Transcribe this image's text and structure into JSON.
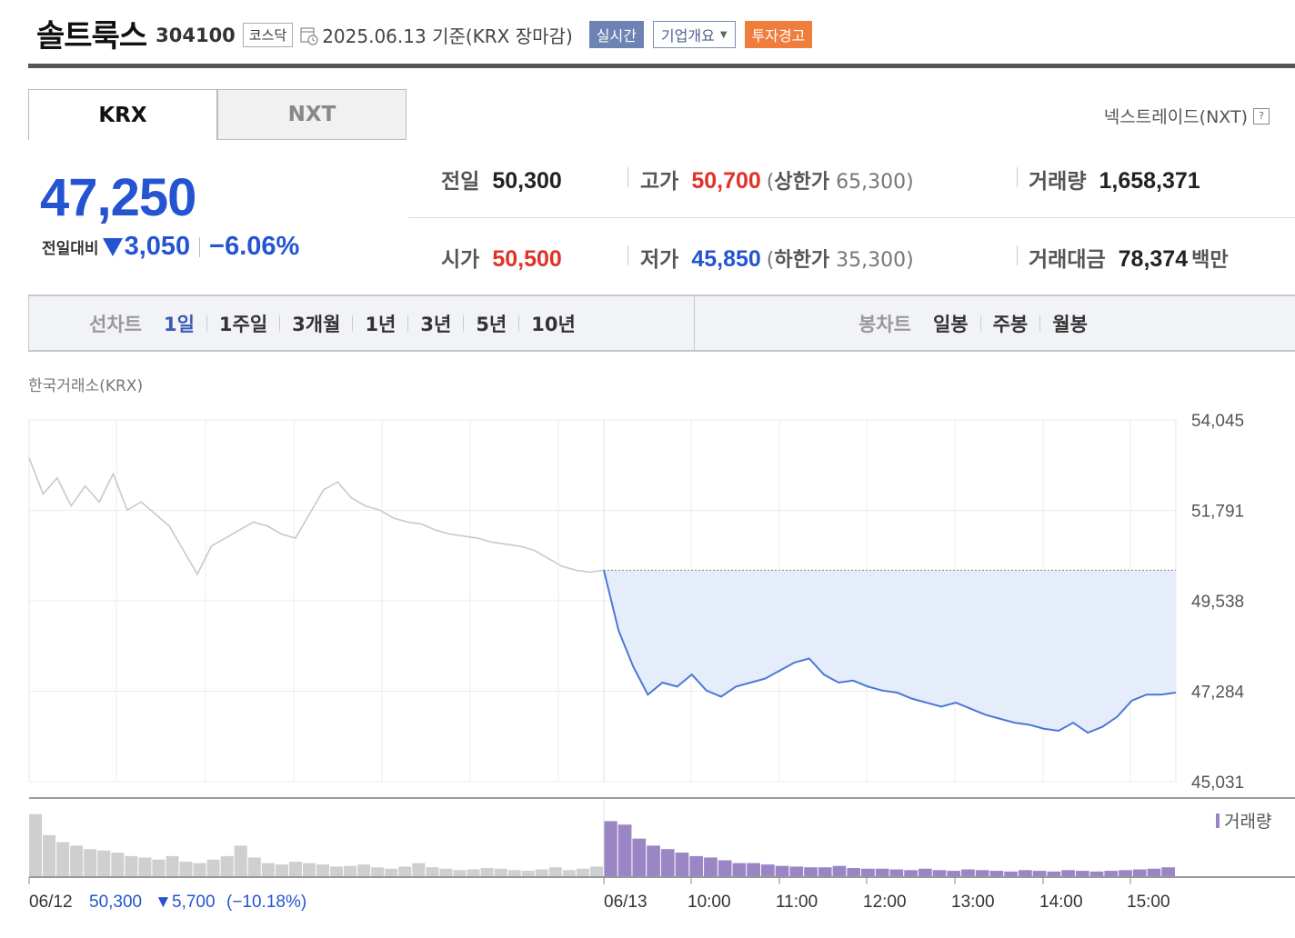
{
  "header": {
    "name": "솔트룩스",
    "code": "304100",
    "market": "코스닥",
    "date": "2025.06.13  기준(KRX 장마감)",
    "btn_realtime": "실시간",
    "btn_company": "기업개요",
    "btn_warning": "투자경고"
  },
  "tabs": {
    "krx": "KRX",
    "nxt": "NXT"
  },
  "nxt_link": "넥스트레이드(NXT)",
  "price": {
    "current": "47,250",
    "change_label": "전일대비",
    "change": "3,050",
    "change_pct": "−6.06%"
  },
  "stats": {
    "prev_label": "전일",
    "prev": "50,300",
    "high_label": "고가",
    "high": "50,700",
    "upper_label": "상한가",
    "upper": "65,300",
    "volume_label": "거래량",
    "volume": "1,658,371",
    "open_label": "시가",
    "open": "50,500",
    "low_label": "저가",
    "low": "45,850",
    "lower_label": "하한가",
    "lower": "35,300",
    "amount_label": "거래대금",
    "amount": "78,374",
    "amount_unit": "백만"
  },
  "chart_tabs": {
    "line_title": "선차트",
    "line": [
      "1일",
      "1주일",
      "3개월",
      "1년",
      "3년",
      "5년",
      "10년"
    ],
    "candle_title": "봉차트",
    "candle": [
      "일봉",
      "주봉",
      "월봉"
    ]
  },
  "exchange_label": "한국거래소(KRX)",
  "colors": {
    "up": "#e03226",
    "down": "#2454d1",
    "line_today": "#4a78d6",
    "fill_today": "#e5edfa",
    "volume": "#9a86c4"
  },
  "chart_data": {
    "type": "line",
    "y_ticks": [
      54045,
      51791,
      49538,
      47284,
      45031
    ],
    "ylim": [
      45031,
      54045
    ],
    "prev_close": 50300,
    "volume_legend": "거래량",
    "prev_day": {
      "date": "06/12",
      "close": "50,300",
      "change": "5,700",
      "change_pct": "(−10.18%)",
      "series": [
        53100,
        52200,
        52600,
        51900,
        52400,
        52000,
        52700,
        51800,
        52000,
        51700,
        51400,
        50800,
        50200,
        50900,
        51100,
        51300,
        51500,
        51400,
        51200,
        51100,
        51700,
        52300,
        52500,
        52100,
        51900,
        51800,
        51600,
        51500,
        51450,
        51300,
        51200,
        51150,
        51100,
        51000,
        50950,
        50900,
        50800,
        50600,
        50400,
        50300,
        50250,
        50300
      ]
    },
    "today": {
      "date": "06/13",
      "times": [
        "10:00",
        "11:00",
        "12:00",
        "13:00",
        "14:00",
        "15:00"
      ],
      "series": [
        50300,
        48800,
        47900,
        47200,
        47500,
        47400,
        47700,
        47300,
        47150,
        47400,
        47500,
        47600,
        47800,
        48000,
        48100,
        47700,
        47500,
        47550,
        47400,
        47300,
        47250,
        47100,
        47000,
        46900,
        47000,
        46850,
        46700,
        46600,
        46500,
        46450,
        46350,
        46300,
        46500,
        46250,
        46400,
        46650,
        47050,
        47200,
        47200,
        47250
      ]
    },
    "volume_prev": [
      90,
      60,
      50,
      45,
      40,
      38,
      35,
      30,
      28,
      25,
      30,
      22,
      20,
      25,
      30,
      45,
      28,
      20,
      18,
      22,
      20,
      18,
      15,
      16,
      18,
      14,
      12,
      15,
      20,
      14,
      12,
      10,
      11,
      13,
      12,
      10,
      9,
      11,
      14,
      10,
      12,
      15
    ],
    "volume_today": [
      80,
      75,
      55,
      45,
      40,
      35,
      30,
      28,
      24,
      20,
      20,
      18,
      16,
      15,
      14,
      14,
      16,
      13,
      12,
      12,
      11,
      10,
      12,
      10,
      9,
      11,
      10,
      9,
      8,
      10,
      9,
      8,
      10,
      9,
      8,
      9,
      10,
      11,
      12,
      14
    ]
  }
}
